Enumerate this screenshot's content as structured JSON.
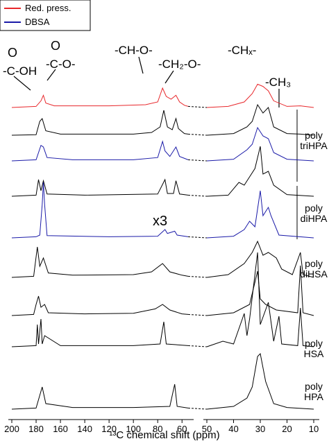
{
  "legend": [
    {
      "label": "Red. press.",
      "color": "#e8262a"
    },
    {
      "label": "DBSA",
      "color": "#1a1aa8"
    }
  ],
  "annotations": [
    "O",
    "-C-OH",
    "O",
    "-C-O-",
    "-CH-O-",
    "-CH₂-O-",
    "-CHₓ-",
    "-CH₃",
    "x3"
  ],
  "sample_labels": [
    [
      "poly",
      "triHPA"
    ],
    [
      "poly",
      "diHPA"
    ],
    [
      "poly",
      "diHSA"
    ],
    [
      "poly",
      "HSA"
    ],
    [
      "poly",
      "HPA"
    ]
  ],
  "xlabel": "¹³C chemical shift (ppm)",
  "chart_data": [
    {
      "type": "line",
      "xlim": [
        200,
        55
      ],
      "xticks": [
        200,
        180,
        160,
        140,
        120,
        100,
        80,
        60
      ],
      "series": [
        {
          "color": "#e8262a",
          "x": [
            200,
            180,
            176,
            174,
            172,
            165,
            120,
            90,
            80,
            76,
            73,
            69,
            65,
            62,
            58,
            55
          ],
          "values": [
            0,
            2,
            12,
            22,
            8,
            3,
            3,
            5,
            10,
            35,
            20,
            15,
            22,
            10,
            4,
            2
          ]
        },
        {
          "color": "#000000",
          "x": [
            200,
            180,
            177,
            175,
            172,
            160,
            100,
            85,
            78,
            75,
            72,
            68,
            65,
            63,
            58,
            55
          ],
          "values": [
            0,
            1,
            25,
            30,
            8,
            2,
            2,
            5,
            15,
            45,
            15,
            10,
            30,
            12,
            3,
            2
          ]
        },
        {
          "color": "#1a1aa8",
          "x": [
            200,
            180,
            176,
            174,
            171,
            150,
            100,
            80,
            76,
            74,
            70,
            65,
            62,
            55
          ],
          "values": [
            0,
            2,
            28,
            25,
            6,
            2,
            2,
            6,
            35,
            18,
            8,
            25,
            8,
            2
          ]
        },
        {
          "color": "#000000",
          "x": [
            200,
            180,
            178,
            176,
            174,
            171,
            140,
            80,
            74,
            72,
            67,
            65,
            62,
            55
          ],
          "values": [
            0,
            2,
            30,
            10,
            28,
            4,
            2,
            4,
            30,
            5,
            5,
            28,
            4,
            2
          ]
        },
        {
          "color": "#1a1aa8",
          "x": [
            200,
            180,
            177,
            175,
            174,
            173,
            171,
            120,
            80,
            74,
            72,
            66,
            64,
            55
          ],
          "values": [
            0,
            2,
            5,
            60,
            100,
            60,
            4,
            2,
            3,
            15,
            8,
            12,
            5,
            2
          ]
        },
        {
          "color": "#000000",
          "x": [
            200,
            182,
            179,
            177,
            174,
            170,
            150,
            100,
            85,
            76,
            70,
            60,
            55
          ],
          "values": [
            0,
            2,
            55,
            20,
            35,
            8,
            4,
            5,
            10,
            25,
            10,
            4,
            2
          ]
        },
        {
          "color": "#000000",
          "x": [
            200,
            182,
            180,
            178,
            176,
            173,
            170,
            140,
            100,
            82,
            76,
            70,
            60,
            55
          ],
          "values": [
            0,
            2,
            20,
            35,
            15,
            20,
            5,
            3,
            4,
            12,
            20,
            10,
            3,
            2
          ]
        },
        {
          "color": "#000000",
          "x": [
            200,
            180,
            179,
            178,
            176,
            175,
            173,
            160,
            100,
            78,
            75,
            73,
            55
          ],
          "values": [
            0,
            2,
            40,
            5,
            50,
            5,
            20,
            2,
            2,
            5,
            45,
            5,
            2
          ]
        },
        {
          "color": "#000000",
          "x": [
            200,
            180,
            175,
            172,
            150,
            100,
            70,
            66,
            64,
            55
          ],
          "values": [
            0,
            2,
            40,
            10,
            3,
            3,
            5,
            45,
            5,
            2
          ]
        }
      ]
    },
    {
      "type": "line",
      "xlim": [
        50,
        10
      ],
      "xticks": [
        50,
        40,
        30,
        20,
        10
      ],
      "series": [
        {
          "color": "#e8262a",
          "x": [
            50,
            42,
            36,
            33,
            31,
            29,
            27,
            25,
            20,
            15,
            10
          ],
          "values": [
            0,
            2,
            10,
            25,
            42,
            38,
            30,
            12,
            2,
            3,
            0
          ]
        },
        {
          "color": "#000000",
          "x": [
            50,
            40,
            35,
            33,
            31,
            29,
            27,
            25,
            20,
            15,
            10
          ],
          "values": [
            0,
            3,
            15,
            25,
            55,
            40,
            50,
            15,
            3,
            2,
            0
          ]
        },
        {
          "color": "#1a1aa8",
          "x": [
            50,
            40,
            35,
            33,
            31,
            29,
            27,
            25,
            20,
            10
          ],
          "values": [
            0,
            3,
            20,
            30,
            60,
            45,
            40,
            15,
            3,
            0
          ]
        },
        {
          "color": "#000000",
          "x": [
            50,
            42,
            38,
            36,
            34,
            32,
            30,
            29,
            27,
            25,
            20,
            10
          ],
          "values": [
            0,
            2,
            25,
            20,
            35,
            50,
            90,
            40,
            45,
            20,
            3,
            0
          ]
        },
        {
          "color": "#1a1aa8",
          "x": [
            50,
            40,
            36,
            34,
            32,
            30,
            29,
            27,
            26,
            23,
            10
          ],
          "values": [
            0,
            3,
            15,
            30,
            20,
            85,
            40,
            55,
            40,
            5,
            0
          ]
        },
        {
          "color": "#000000",
          "x": [
            50,
            42,
            36,
            33,
            31,
            29,
            27,
            24,
            22,
            18,
            15,
            14,
            10
          ],
          "values": [
            0,
            5,
            25,
            45,
            65,
            40,
            45,
            35,
            15,
            5,
            45,
            5,
            0
          ]
        },
        {
          "color": "#000000",
          "x": [
            50,
            40,
            34,
            31,
            30,
            28,
            24,
            16,
            15,
            14,
            10
          ],
          "values": [
            0,
            5,
            20,
            80,
            30,
            20,
            10,
            5,
            90,
            5,
            0
          ]
        },
        {
          "color": "#000000",
          "x": [
            50,
            44,
            40,
            36,
            35,
            34,
            31,
            30,
            27,
            25,
            23,
            22,
            16,
            15,
            14,
            10
          ],
          "values": [
            0,
            10,
            5,
            60,
            20,
            50,
            170,
            40,
            80,
            10,
            55,
            5,
            2,
            70,
            2,
            0
          ]
        },
        {
          "color": "#000000",
          "x": [
            50,
            40,
            35,
            33,
            31,
            30,
            28,
            25,
            20,
            10
          ],
          "values": [
            0,
            5,
            20,
            40,
            95,
            100,
            50,
            10,
            3,
            0
          ]
        }
      ]
    }
  ]
}
